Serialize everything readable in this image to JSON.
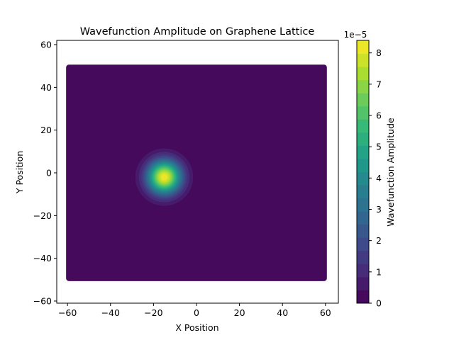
{
  "chart_data": {
    "type": "heatmap",
    "title": "Wavefunction Amplitude on Graphene Lattice",
    "xlabel": "X Position",
    "ylabel": "Y Position",
    "xlim": [
      -65,
      66
    ],
    "ylim": [
      -61,
      62
    ],
    "xticks": [
      -60,
      -40,
      -20,
      0,
      20,
      40,
      60
    ],
    "xtick_labels": [
      "−60",
      "−40",
      "−20",
      "0",
      "20",
      "40",
      "60"
    ],
    "yticks": [
      -60,
      -40,
      -20,
      0,
      20,
      40,
      60
    ],
    "ytick_labels": [
      "−60",
      "−40",
      "−20",
      "0",
      "20",
      "40",
      "60"
    ],
    "lattice_extent": {
      "x": [
        -60,
        60
      ],
      "y": [
        -50,
        50
      ]
    },
    "gaussian": {
      "center_x": -15,
      "center_y": -2,
      "sigma": 5.5,
      "peak": 8.3e-05
    },
    "colorbar": {
      "label": "Wavefunction Amplitude",
      "offset_text": "1e−5",
      "range": [
        0,
        8.4e-05
      ],
      "levels": 20,
      "ticks": [
        0,
        1,
        2,
        3,
        4,
        5,
        6,
        7,
        8
      ],
      "tick_labels": [
        "0",
        "1",
        "2",
        "3",
        "4",
        "5",
        "6",
        "7",
        "8"
      ],
      "colormap": "viridis"
    },
    "grid": false
  }
}
